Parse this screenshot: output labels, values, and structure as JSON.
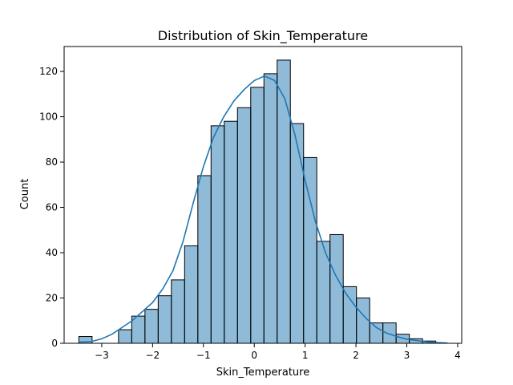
{
  "chart_data": {
    "type": "bar",
    "subtype": "histogram-with-kde",
    "title": "Distribution of Skin_Temperature",
    "xlabel": "Skin_Temperature",
    "ylabel": "Count",
    "xlim": [
      -3.74,
      4.08
    ],
    "ylim": [
      0,
      131
    ],
    "grid": false,
    "bin_edges": [
      -3.45,
      -3.19,
      -2.93,
      -2.67,
      -2.41,
      -2.15,
      -1.89,
      -1.63,
      -1.37,
      -1.11,
      -0.85,
      -0.59,
      -0.33,
      -0.07,
      0.19,
      0.45,
      0.71,
      0.97,
      1.23,
      1.49,
      1.75,
      2.01,
      2.27,
      2.53,
      2.79,
      3.05,
      3.31,
      3.57,
      3.83
    ],
    "counts": [
      3,
      0,
      0,
      6,
      12,
      15,
      21,
      28,
      43,
      74,
      96,
      98,
      104,
      113,
      119,
      125,
      97,
      82,
      45,
      48,
      25,
      20,
      9,
      9,
      4,
      2,
      1,
      0
    ],
    "kde": {
      "x": [
        -3.45,
        -3.2,
        -3.0,
        -2.8,
        -2.6,
        -2.4,
        -2.2,
        -2.0,
        -1.8,
        -1.6,
        -1.4,
        -1.2,
        -1.0,
        -0.8,
        -0.6,
        -0.4,
        -0.2,
        0.0,
        0.2,
        0.4,
        0.6,
        0.8,
        1.0,
        1.2,
        1.4,
        1.6,
        1.8,
        2.0,
        2.2,
        2.4,
        2.6,
        2.8,
        3.0,
        3.2,
        3.4,
        3.6,
        3.8
      ],
      "y": [
        0.5,
        0.8,
        2,
        4,
        7,
        10,
        14,
        18,
        24,
        32,
        45,
        62,
        78,
        91,
        100,
        107,
        112,
        116,
        118,
        116,
        108,
        92,
        72,
        54,
        40,
        30,
        22,
        16,
        11,
        7,
        4.5,
        3,
        1.8,
        1.2,
        0.6,
        0.3,
        0.1
      ]
    },
    "x_ticks": [
      -3,
      -2,
      -1,
      0,
      1,
      2,
      3,
      4
    ],
    "y_ticks": [
      0,
      20,
      40,
      60,
      80,
      100,
      120
    ],
    "colors": {
      "bar_fill": "#1f77b4",
      "kde_line": "#1f77b4"
    }
  }
}
